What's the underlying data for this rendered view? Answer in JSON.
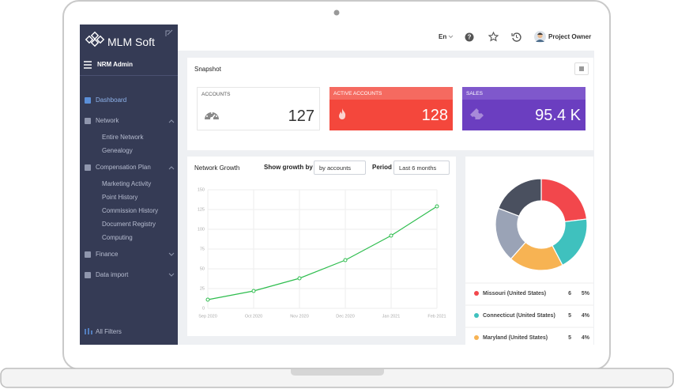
{
  "sidebar": {
    "logo": "MLM Soft",
    "user_title": "NRM Admin",
    "menu": [
      {
        "label": "Dashboard"
      },
      {
        "label": "Network",
        "children": [
          "Entire Network",
          "Genealogy"
        ]
      },
      {
        "label": "Compensation Plan",
        "children": [
          "Marketing Activity",
          "Point History",
          "Commission History",
          "Document Registry",
          "Computing"
        ]
      },
      {
        "label": "Finance"
      },
      {
        "label": "Data import"
      }
    ],
    "footer": "All Filters"
  },
  "topbar": {
    "language": "En",
    "user": "Project Owner"
  },
  "snapshot": {
    "title": "Snapshot",
    "cards": [
      {
        "label": "ACCOUNTS",
        "value": 127
      },
      {
        "label": "ACTIVE ACCOUNTS",
        "value": 128
      },
      {
        "label": "SALES",
        "value": "95.4 K"
      }
    ]
  },
  "network_growth": {
    "title": "Network Growth",
    "filter_label": "Show growth by",
    "filter_value": "by accounts",
    "period_label": "Period",
    "period_value": "Last 6 months",
    "chart": {
      "type": "line",
      "categories": [
        "Sep 2020",
        "Oct 2020",
        "Nov 2020",
        "Dec 2020",
        "Jan 2021",
        "Feb 2021"
      ],
      "values": [
        11,
        22,
        38,
        61,
        92,
        129
      ],
      "color": "#2ebd4e",
      "ylim": [
        0,
        150
      ],
      "yticks": [
        0,
        25,
        50,
        75,
        100,
        125,
        150
      ],
      "grid": true
    }
  },
  "donut": {
    "rows": [
      {
        "name": "Missouri (United States)",
        "count": 6,
        "percent": "5%",
        "color": "#f2474c"
      },
      {
        "name": "Connecticut (United States)",
        "count": 5,
        "percent": "4%",
        "color": "#3fc1be"
      },
      {
        "name": "Maryland (United States)",
        "count": 5,
        "percent": "4%",
        "color": "#f7b353"
      }
    ],
    "more_slices": [
      {
        "value": 5,
        "color": "#9aa3b6"
      },
      {
        "value": 5,
        "color": "#4a505f"
      }
    ]
  }
}
